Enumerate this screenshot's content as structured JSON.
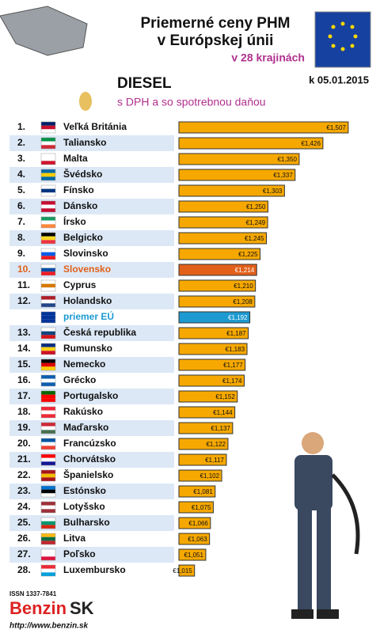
{
  "chart_data": {
    "type": "bar",
    "orientation": "horizontal",
    "title": [
      "Priemerné ceny PHM",
      "v Európskej únii"
    ],
    "subtitle": "v 28 krajinách",
    "fuel": "DIESEL",
    "note": "s DPH a so spotrebnou daňou",
    "date": "k 05.01.2015",
    "ranks": [
      "1.",
      "2.",
      "3.",
      "4.",
      "5.",
      "6.",
      "7.",
      "8.",
      "9.",
      "10.",
      "11.",
      "12.",
      null,
      "13.",
      "14.",
      "15.",
      "16.",
      "17.",
      "18.",
      "19.",
      "20.",
      "21.",
      "22.",
      "23.",
      "24.",
      "25.",
      "26.",
      "27.",
      "28."
    ],
    "categories": [
      "Veľká Británia",
      "Taliansko",
      "Malta",
      "Švédsko",
      "Fínsko",
      "Dánsko",
      "Írsko",
      "Belgicko",
      "Slovinsko",
      "Slovensko",
      "Cyprus",
      "Holandsko",
      "priemer EÚ",
      "Česká republika",
      "Rumunsko",
      "Nemecko",
      "Grécko",
      "Portugalsko",
      "Rakúsko",
      "Maďarsko",
      "Francúzsko",
      "Chorvátsko",
      "Španielsko",
      "Estónsko",
      "Lotyšsko",
      "Bulharsko",
      "Litva",
      "Poľsko",
      "Luxembursko"
    ],
    "values": [
      1.507,
      1.426,
      1.35,
      1.337,
      1.303,
      1.25,
      1.249,
      1.245,
      1.225,
      1.214,
      1.21,
      1.208,
      1.192,
      1.187,
      1.183,
      1.177,
      1.174,
      1.152,
      1.144,
      1.137,
      1.122,
      1.117,
      1.102,
      1.081,
      1.075,
      1.066,
      1.063,
      1.051,
      1.015
    ],
    "value_labels": [
      "€1,507",
      "€1,426",
      "€1,350",
      "€1,337",
      "€1,303",
      "€1,250",
      "€1,249",
      "€1,245",
      "€1,225",
      "€1,214",
      "€1,210",
      "€1,208",
      "€1,192",
      "€1,187",
      "€1,183",
      "€1,177",
      "€1,174",
      "€1,152",
      "€1,144",
      "€1,137",
      "€1,122",
      "€1,117",
      "€1,102",
      "€1,081",
      "€1,075",
      "€1,066",
      "€1,063",
      "€1,051",
      "€1,015"
    ],
    "colors": [
      "#f6a800",
      "#f6a800",
      "#f6a800",
      "#f6a800",
      "#f6a800",
      "#f6a800",
      "#f6a800",
      "#f6a800",
      "#f6a800",
      "#e2601a",
      "#f6a800",
      "#f6a800",
      "#1d9ad1",
      "#f6a800",
      "#f6a800",
      "#f6a800",
      "#f6a800",
      "#f6a800",
      "#f6a800",
      "#f6a800",
      "#f6a800",
      "#f6a800",
      "#f6a800",
      "#f6a800",
      "#f6a800",
      "#f6a800",
      "#f6a800",
      "#f6a800",
      "#f6a800"
    ],
    "label_colors": [
      "#111",
      "#111",
      "#111",
      "#111",
      "#111",
      "#111",
      "#111",
      "#111",
      "#111",
      "#e2601a",
      "#111",
      "#111",
      "#1d9ad1",
      "#111",
      "#111",
      "#111",
      "#111",
      "#111",
      "#111",
      "#111",
      "#111",
      "#111",
      "#111",
      "#111",
      "#111",
      "#111",
      "#111",
      "#111",
      "#111"
    ],
    "xlim": [
      0.965,
      1.52
    ],
    "issn": "ISSN 1337-7841",
    "brand": [
      "Benzin",
      "SK"
    ],
    "url": "http://www.benzin.sk"
  }
}
